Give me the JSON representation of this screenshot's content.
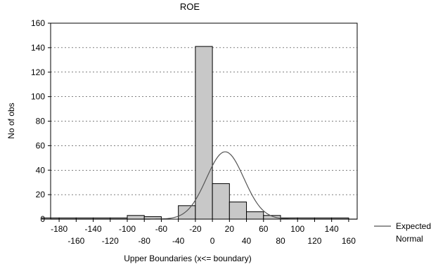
{
  "chart_data": {
    "type": "bar",
    "title": "ROE",
    "xlabel": "Upper Boundaries (x<= boundary)",
    "ylabel": "No of obs",
    "xlim": [
      -190,
      170
    ],
    "ylim": [
      0,
      160
    ],
    "bin_width": 20,
    "x_ticks_upper": [
      "-180",
      "-140",
      "-100",
      "-60",
      "-20",
      "20",
      "60",
      "100",
      "140"
    ],
    "x_ticks_lower": [
      "-160",
      "-120",
      "-80",
      "-40",
      "0",
      "40",
      "80",
      "120",
      "160"
    ],
    "x_ticks_upper_values": [
      -180,
      -140,
      -100,
      -60,
      -20,
      20,
      60,
      100,
      140
    ],
    "x_ticks_lower_values": [
      -160,
      -120,
      -80,
      -40,
      0,
      40,
      80,
      120,
      160
    ],
    "y_ticks": [
      "0",
      "20",
      "40",
      "60",
      "80",
      "100",
      "120",
      "140",
      "160"
    ],
    "y_tick_values": [
      0,
      20,
      40,
      60,
      80,
      100,
      120,
      140,
      160
    ],
    "grid": "horizontal-dashed",
    "bins_upper": [
      -180,
      -160,
      -140,
      -120,
      -100,
      -80,
      -60,
      -40,
      -20,
      0,
      20,
      40,
      60,
      80,
      100,
      120,
      140,
      160
    ],
    "values": [
      1,
      1,
      1,
      1,
      1,
      3,
      2,
      0,
      11,
      141,
      29,
      14,
      6,
      3,
      1,
      1,
      1,
      1
    ],
    "expected_normal": {
      "mean": 15,
      "sd": 22,
      "peak": 55
    },
    "legend": {
      "position": "right-bottom",
      "label_line1": "Expected",
      "label_line2": "Normal"
    },
    "colors": {
      "bar_fill": "#c8c8c8",
      "bar_stroke": "#000000",
      "curve": "#555555",
      "grid": "#000000"
    }
  }
}
